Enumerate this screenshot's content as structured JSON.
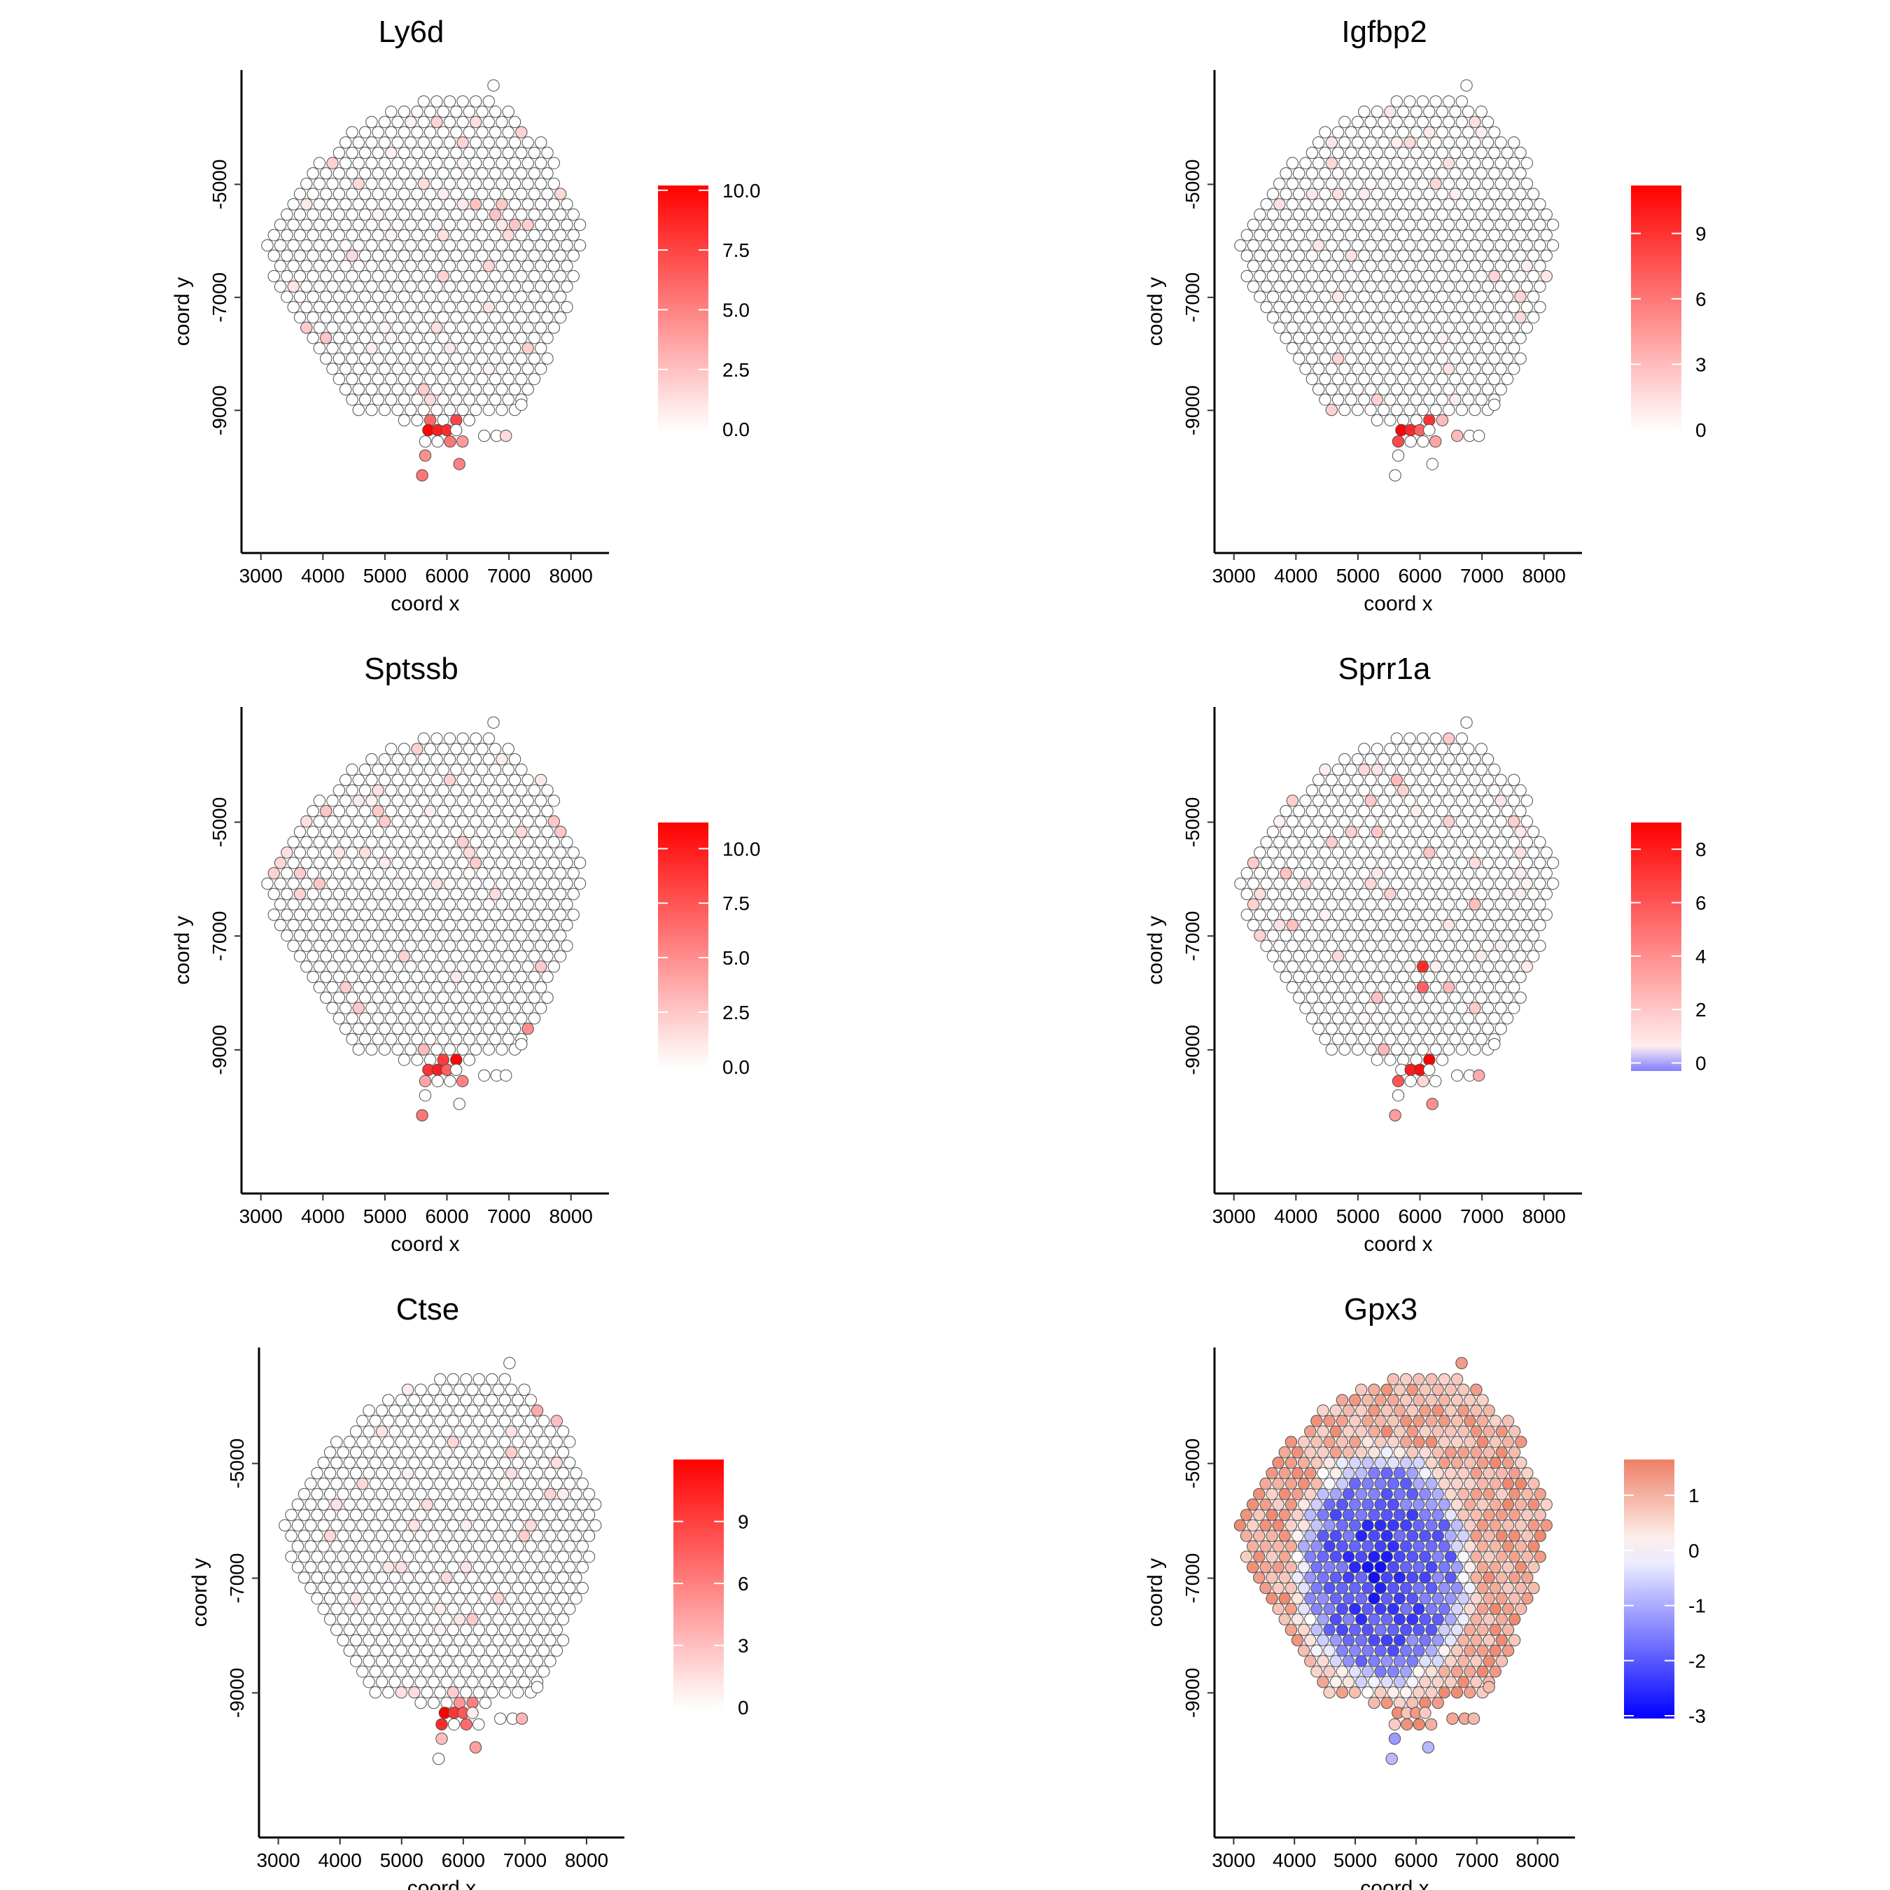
{
  "figure": {
    "background": "#ffffff"
  },
  "colors": {
    "high": "#ff0000",
    "mid": "#ffffff",
    "low": "#0000ff",
    "spot_border": "#4d4d4d"
  },
  "chart_data": [
    {
      "type": "scatter",
      "title": "Ly6d",
      "xlabel": "coord x",
      "ylabel": "coord y",
      "x_ticks": [
        3000,
        4000,
        5000,
        6000,
        7000,
        8000
      ],
      "y_ticks": [
        -5000,
        -7000,
        -9000
      ],
      "xlim": [
        2800,
        8500
      ],
      "ylim": [
        -11400,
        -3100
      ],
      "legend": {
        "ticks": [
          0,
          2.5,
          5,
          7.5,
          10
        ],
        "tick_labels": [
          "0.0",
          "2.5",
          "5.0",
          "7.5",
          "10.0"
        ],
        "min": -0.2,
        "max": 10.2,
        "scheme": "white-red"
      },
      "hotspots": [
        {
          "x": 5700,
          "y": -9400,
          "value": 10
        },
        {
          "x": 5850,
          "y": -9350,
          "value": 9
        },
        {
          "x": 6000,
          "y": -9300,
          "value": 8.5
        },
        {
          "x": 6150,
          "y": -9200,
          "value": 7.5
        },
        {
          "x": 5800,
          "y": -9200,
          "value": 6
        },
        {
          "x": 6000,
          "y": -9550,
          "value": 5.5
        },
        {
          "x": 5650,
          "y": -9800,
          "value": 4.5
        },
        {
          "x": 6200,
          "y": -9950,
          "value": 5
        },
        {
          "x": 5600,
          "y": -10150,
          "value": 5.5
        },
        {
          "x": 6250,
          "y": -9450,
          "value": 4
        },
        {
          "x": 5650,
          "y": -8650,
          "value": 2
        },
        {
          "x": 5800,
          "y": -8750,
          "value": 1.5
        },
        {
          "x": 6900,
          "y": -9450,
          "value": 1.5
        }
      ],
      "sparse_count": 45,
      "sparse_max": 2.5,
      "seed": 11
    },
    {
      "type": "scatter",
      "title": "Igfbp2",
      "xlabel": "coord x",
      "ylabel": "coord y",
      "x_ticks": [
        3000,
        4000,
        5000,
        6000,
        7000,
        8000
      ],
      "y_ticks": [
        -5000,
        -7000,
        -9000
      ],
      "xlim": [
        2800,
        8500
      ],
      "ylim": [
        -11400,
        -3100
      ],
      "legend": {
        "ticks": [
          0,
          3,
          6,
          9
        ],
        "tick_labels": [
          "0",
          "3",
          "6",
          "9"
        ],
        "min": -0.2,
        "max": 11.2,
        "scheme": "white-red"
      },
      "hotspots": [
        {
          "x": 5750,
          "y": -9350,
          "value": 11
        },
        {
          "x": 5900,
          "y": -9300,
          "value": 9.5
        },
        {
          "x": 6050,
          "y": -9200,
          "value": 9
        },
        {
          "x": 5650,
          "y": -9450,
          "value": 8
        },
        {
          "x": 6050,
          "y": -9400,
          "value": 7
        },
        {
          "x": 5650,
          "y": -9600,
          "value": 6
        },
        {
          "x": 6200,
          "y": -9550,
          "value": 4
        },
        {
          "x": 6550,
          "y": -9450,
          "value": 3
        },
        {
          "x": 5400,
          "y": -8850,
          "value": 2
        },
        {
          "x": 4600,
          "y": -9000,
          "value": 2
        },
        {
          "x": 6300,
          "y": -9250,
          "value": 3
        }
      ],
      "sparse_count": 35,
      "sparse_max": 2.0,
      "seed": 23
    },
    {
      "type": "scatter",
      "title": "Sptssb",
      "xlabel": "coord x",
      "ylabel": "coord y",
      "x_ticks": [
        3000,
        4000,
        5000,
        6000,
        7000,
        8000
      ],
      "y_ticks": [
        -5000,
        -7000,
        -9000
      ],
      "xlim": [
        2800,
        8500
      ],
      "ylim": [
        -11400,
        -3100
      ],
      "legend": {
        "ticks": [
          0,
          2.5,
          5,
          7.5,
          10
        ],
        "tick_labels": [
          "0.0",
          "2.5",
          "5.0",
          "7.5",
          "10.0"
        ],
        "min": -0.2,
        "max": 11.2,
        "scheme": "white-red"
      },
      "hotspots": [
        {
          "x": 6150,
          "y": -9250,
          "value": 11
        },
        {
          "x": 5900,
          "y": -9300,
          "value": 10
        },
        {
          "x": 5750,
          "y": -9400,
          "value": 9
        },
        {
          "x": 6000,
          "y": -9200,
          "value": 8.5
        },
        {
          "x": 5650,
          "y": -9300,
          "value": 8
        },
        {
          "x": 6050,
          "y": -9400,
          "value": 7
        },
        {
          "x": 6200,
          "y": -9600,
          "value": 5.5
        },
        {
          "x": 5600,
          "y": -10100,
          "value": 6
        },
        {
          "x": 7300,
          "y": -8700,
          "value": 5
        },
        {
          "x": 5650,
          "y": -9600,
          "value": 4
        },
        {
          "x": 5700,
          "y": -9000,
          "value": 3
        }
      ],
      "sparse_count": 40,
      "sparse_max": 2.5,
      "seed": 37
    },
    {
      "type": "scatter",
      "title": "Sprr1a",
      "xlabel": "coord x",
      "ylabel": "coord y",
      "x_ticks": [
        3000,
        4000,
        5000,
        6000,
        7000,
        8000
      ],
      "y_ticks": [
        -5000,
        -7000,
        -9000
      ],
      "xlim": [
        2800,
        8500
      ],
      "ylim": [
        -11400,
        -3100
      ],
      "legend": {
        "ticks": [
          0,
          2,
          4,
          6,
          8
        ],
        "tick_labels": [
          "0",
          "2",
          "4",
          "6",
          "8"
        ],
        "min": -0.3,
        "max": 9.0,
        "scheme": "blue-white-red"
      },
      "hotspots": [
        {
          "x": 6100,
          "y": -9250,
          "value": 9
        },
        {
          "x": 5950,
          "y": -9300,
          "value": 8.5
        },
        {
          "x": 5800,
          "y": -9350,
          "value": 8
        },
        {
          "x": 6250,
          "y": -9200,
          "value": 7
        },
        {
          "x": 5650,
          "y": -9450,
          "value": 6
        },
        {
          "x": 6000,
          "y": -7500,
          "value": 7.5
        },
        {
          "x": 6000,
          "y": -7850,
          "value": 5.5
        },
        {
          "x": 5650,
          "y": -9650,
          "value": 5
        },
        {
          "x": 6200,
          "y": -9900,
          "value": 4
        },
        {
          "x": 5600,
          "y": -10250,
          "value": 3.5
        },
        {
          "x": 7100,
          "y": -9350,
          "value": 3
        },
        {
          "x": 5500,
          "y": -9000,
          "value": 2.5
        }
      ],
      "sparse_count": 60,
      "sparse_max": 2.5,
      "seed": 53
    },
    {
      "type": "scatter",
      "title": "Ctse",
      "xlabel": "coord x",
      "ylabel": "coord y",
      "x_ticks": [
        3000,
        4000,
        5000,
        6000,
        7000,
        8000
      ],
      "y_ticks": [
        -5000,
        -7000,
        -9000
      ],
      "xlim": [
        2800,
        8500
      ],
      "ylim": [
        -11400,
        -3100
      ],
      "legend": {
        "ticks": [
          0,
          3,
          6,
          9
        ],
        "tick_labels": [
          "0",
          "3",
          "6",
          "9"
        ],
        "min": -0.2,
        "max": 12.0,
        "scheme": "white-red"
      },
      "hotspots": [
        {
          "x": 5750,
          "y": -9450,
          "value": 12
        },
        {
          "x": 5900,
          "y": -9300,
          "value": 9.5
        },
        {
          "x": 5650,
          "y": -9600,
          "value": 10
        },
        {
          "x": 6050,
          "y": -9300,
          "value": 8
        },
        {
          "x": 6050,
          "y": -9500,
          "value": 7
        },
        {
          "x": 6200,
          "y": -9200,
          "value": 6
        },
        {
          "x": 5850,
          "y": -9150,
          "value": 5
        },
        {
          "x": 6200,
          "y": -9950,
          "value": 4.5
        },
        {
          "x": 5750,
          "y": -9850,
          "value": 3
        },
        {
          "x": 7000,
          "y": -9300,
          "value": 3.5
        },
        {
          "x": 7400,
          "y": -4000,
          "value": 4
        },
        {
          "x": 7500,
          "y": -4250,
          "value": 3
        }
      ],
      "sparse_count": 45,
      "sparse_max": 2.5,
      "seed": 71
    },
    {
      "type": "scatter",
      "title": "Gpx3",
      "xlabel": "coord x",
      "ylabel": "coord y",
      "x_ticks": [
        3000,
        4000,
        5000,
        6000,
        7000,
        8000
      ],
      "y_ticks": [
        -5000,
        -7000,
        -9000
      ],
      "xlim": [
        2800,
        8500
      ],
      "ylim": [
        -11400,
        -3100
      ],
      "legend": {
        "ticks": [
          1,
          0,
          -1,
          -2,
          -3
        ],
        "tick_labels": [
          "1",
          "0",
          "-1",
          "-2",
          "-3"
        ],
        "min": -3.05,
        "max": 1.65,
        "scheme": "blue-white-red-light"
      },
      "field": {
        "type": "core",
        "center_x": 5450,
        "center_y": -6850,
        "radius_x": 1400,
        "radius_y": 2050,
        "inner_value": -2.6,
        "outer_value": 1.05,
        "noise": 0.5,
        "below_y": -9700,
        "below_value": -0.9
      },
      "sparse_count": 0,
      "sparse_max": 0,
      "seed": 97
    }
  ]
}
